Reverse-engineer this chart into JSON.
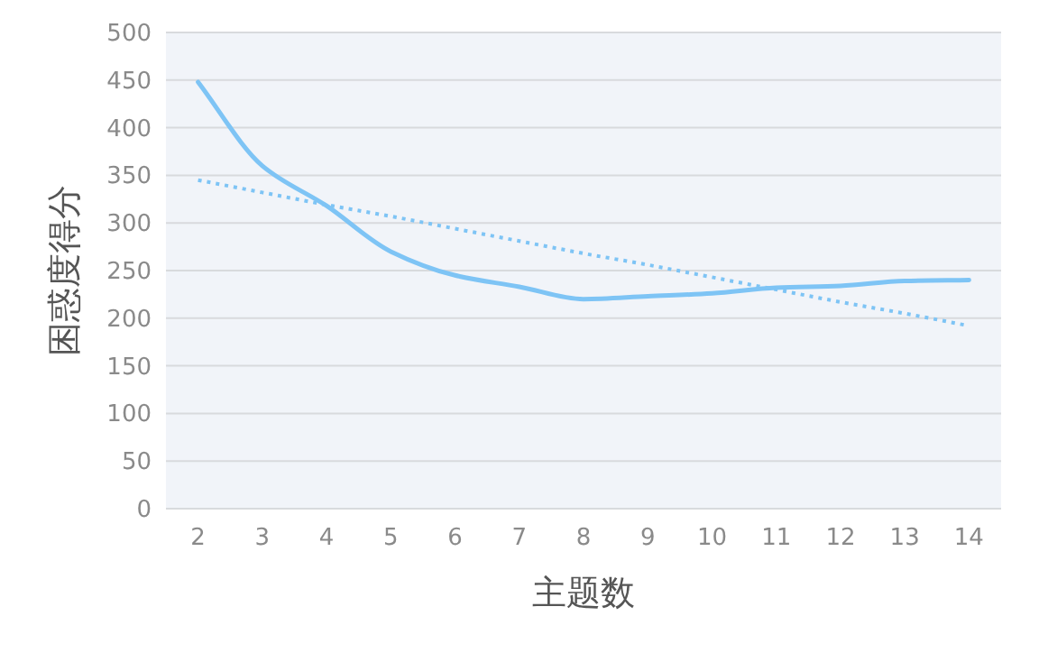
{
  "chart_data": {
    "type": "line",
    "xlabel": "主题数",
    "ylabel": "困惑度得分",
    "categories": [
      "2",
      "3",
      "4",
      "5",
      "6",
      "7",
      "8",
      "9",
      "10",
      "11",
      "12",
      "13",
      "14"
    ],
    "series": [
      {
        "color": "#7ec4f5",
        "values": [
          448,
          360,
          318,
          270,
          245,
          233,
          220,
          223,
          226,
          232,
          234,
          239,
          240
        ],
        "line_style": "solid"
      },
      {
        "color": "#7ec4f5",
        "values": [
          345,
          332,
          319,
          307,
          294,
          281,
          268,
          256,
          243,
          230,
          217,
          205,
          192
        ],
        "line_style": "dotted"
      }
    ],
    "ylim": [
      0,
      500
    ],
    "yticks": [
      0,
      50,
      100,
      150,
      200,
      250,
      300,
      350,
      400,
      450,
      500
    ],
    "grid": "y",
    "marker": "none"
  }
}
